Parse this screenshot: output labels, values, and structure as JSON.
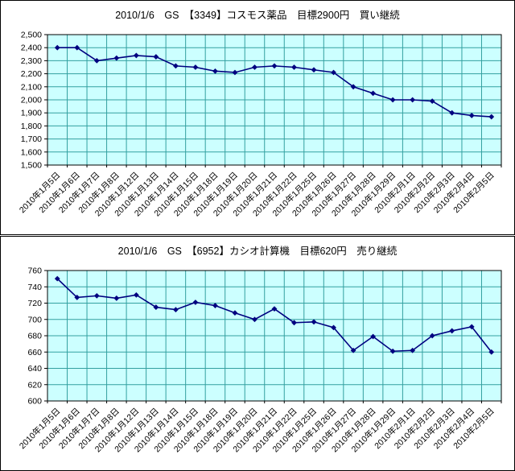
{
  "chart_data": [
    {
      "type": "line",
      "title": "2010/1/6　GS　【3349】コスモス薬品　目標2900円　買い継続",
      "categories": [
        "2010年1月5日",
        "2010年1月6日",
        "2010年1月7日",
        "2010年1月8日",
        "2010年1月12日",
        "2010年1月13日",
        "2010年1月14日",
        "2010年1月15日",
        "2010年1月18日",
        "2010年1月19日",
        "2010年1月20日",
        "2010年1月21日",
        "2010年1月22日",
        "2010年1月25日",
        "2010年1月26日",
        "2010年1月27日",
        "2010年1月28日",
        "2010年1月29日",
        "2010年2月1日",
        "2010年2月2日",
        "2010年2月3日",
        "2010年2月4日",
        "2010年2月5日"
      ],
      "values": [
        2400,
        2400,
        2300,
        2320,
        2340,
        2330,
        2260,
        2250,
        2220,
        2210,
        2250,
        2260,
        2250,
        2230,
        2210,
        2100,
        2050,
        2000,
        2000,
        1990,
        1900,
        1880,
        1870
      ],
      "ylim": [
        1500,
        2500
      ],
      "ytick_step": 100,
      "ytick_format": "comma",
      "grid": true,
      "legend": "none",
      "colors": {
        "line": "#000080",
        "marker": "#000080",
        "plot_bg": "#ccffff",
        "grid": "#33a0a0",
        "axis": "#000000",
        "text": "#000000"
      }
    },
    {
      "type": "line",
      "title": "2010/1/6　GS　【6952】カシオ計算機　目標620円　売り継続",
      "categories": [
        "2010年1月5日",
        "2010年1月6日",
        "2010年1月7日",
        "2010年1月8日",
        "2010年1月12日",
        "2010年1月13日",
        "2010年1月14日",
        "2010年1月15日",
        "2010年1月18日",
        "2010年1月19日",
        "2010年1月20日",
        "2010年1月21日",
        "2010年1月22日",
        "2010年1月25日",
        "2010年1月26日",
        "2010年1月27日",
        "2010年1月28日",
        "2010年1月29日",
        "2010年2月1日",
        "2010年2月2日",
        "2010年2月3日",
        "2010年2月4日",
        "2010年2月5日"
      ],
      "values": [
        750,
        727,
        729,
        726,
        730,
        715,
        712,
        721,
        717,
        708,
        700,
        713,
        696,
        697,
        690,
        662,
        679,
        661,
        662,
        680,
        686,
        691,
        660
      ],
      "ylim": [
        600,
        760
      ],
      "ytick_step": 20,
      "ytick_format": "plain",
      "grid": true,
      "legend": "none",
      "colors": {
        "line": "#000080",
        "marker": "#000080",
        "plot_bg": "#ccffff",
        "grid": "#33a0a0",
        "axis": "#000000",
        "text": "#000000"
      }
    }
  ]
}
